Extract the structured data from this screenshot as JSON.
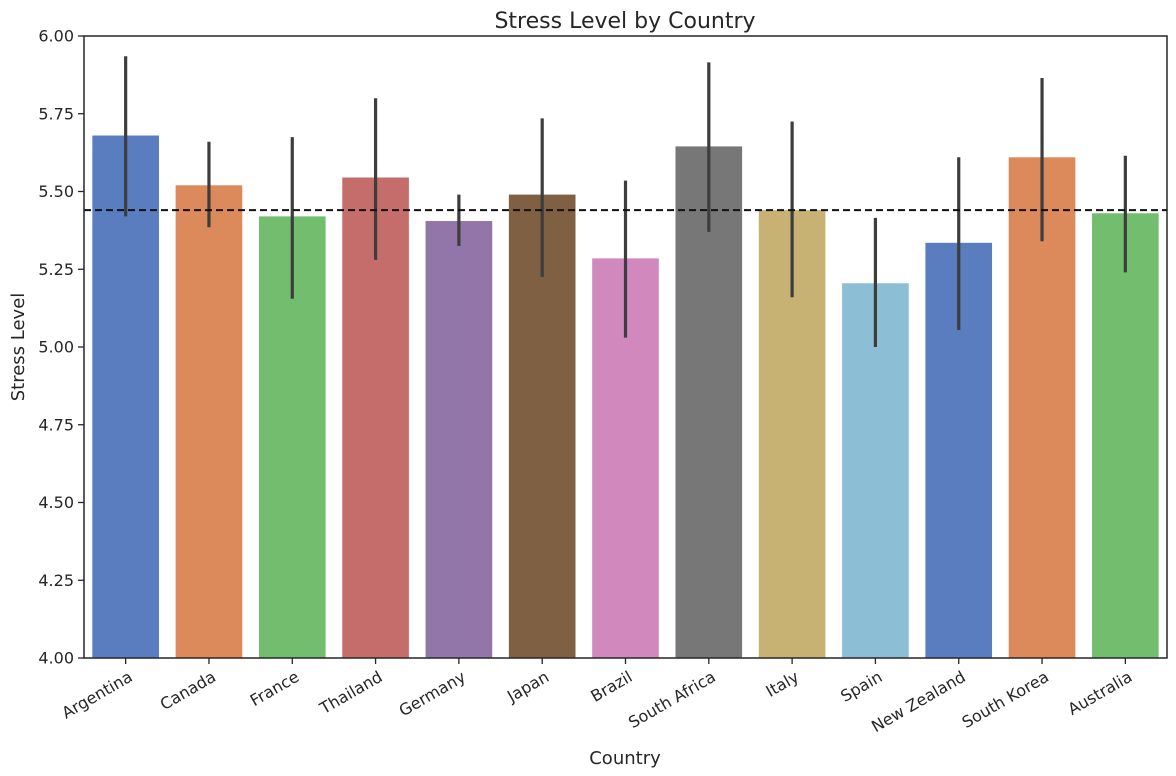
{
  "chart_data": {
    "type": "bar",
    "title": "Stress Level by Country",
    "xlabel": "Country",
    "ylabel": "Stress Level",
    "ylim": [
      4.0,
      6.0
    ],
    "yticks": [
      "4.00",
      "4.25",
      "4.50",
      "4.75",
      "5.00",
      "5.25",
      "5.50",
      "5.75",
      "6.00"
    ],
    "categories": [
      "Argentina",
      "Canada",
      "France",
      "Thailand",
      "Germany",
      "Japan",
      "Brazil",
      "South Africa",
      "Italy",
      "Spain",
      "New Zealand",
      "South Korea",
      "Australia"
    ],
    "values": [
      5.68,
      5.52,
      5.42,
      5.545,
      5.405,
      5.49,
      5.285,
      5.645,
      5.44,
      5.205,
      5.335,
      5.61,
      5.43
    ],
    "error_low": [
      5.42,
      5.385,
      5.155,
      5.28,
      5.325,
      5.225,
      5.03,
      5.37,
      5.16,
      5.0,
      5.055,
      5.34,
      5.24
    ],
    "error_high": [
      5.935,
      5.66,
      5.675,
      5.8,
      5.49,
      5.735,
      5.535,
      5.915,
      5.725,
      5.415,
      5.61,
      5.865,
      5.615
    ],
    "colors": [
      "#5a7dc0",
      "#dc8a5c",
      "#72be6e",
      "#c56d6b",
      "#9275a9",
      "#7f6043",
      "#d088bd",
      "#777777",
      "#c7b273",
      "#8cbfd6",
      "#5a7dc0",
      "#dc8a5c",
      "#72be6e"
    ],
    "reference_line": 5.44,
    "grid": false
  }
}
